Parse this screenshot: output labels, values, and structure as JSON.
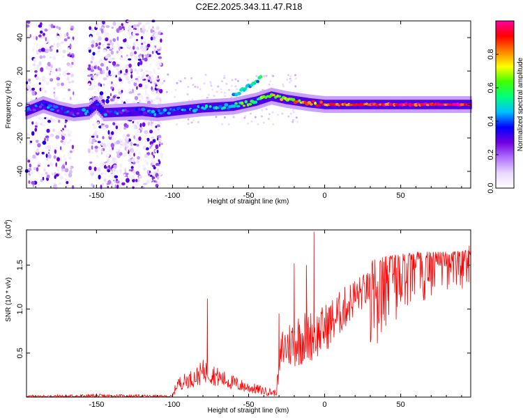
{
  "title": "C2E2.2025.343.11.47.R18",
  "chart_data": [
    {
      "type": "heatmap",
      "name": "spectrogram",
      "xlabel": "Height of straight line (km)",
      "ylabel": "Frequency (Hz)",
      "xlim": [
        -196,
        96
      ],
      "ylim": [
        -50,
        50
      ],
      "xticks": [
        -150,
        -100,
        -50,
        0,
        50
      ],
      "xtick_labels": [
        "-150",
        "-100",
        "-50",
        "0",
        "50"
      ],
      "yticks": [
        -40,
        -20,
        0,
        20,
        40
      ],
      "ytick_labels": [
        "-40",
        "-20",
        "0",
        "20",
        "40"
      ],
      "colorbar": {
        "label": "Normalized spectral amplitude",
        "range": [
          0,
          1
        ],
        "ticks": [
          0.0,
          0.2,
          0.4,
          0.6,
          0.8
        ],
        "tick_labels": [
          "0.0",
          "0.2",
          "0.4",
          "0.6",
          "0.8"
        ],
        "colors": [
          "#ffffff",
          "#e8d8ff",
          "#b070ff",
          "#7000e0",
          "#0000ff",
          "#00c0ff",
          "#00ff80",
          "#40ff00",
          "#ffff00",
          "#ff8000",
          "#ff0000",
          "#ff00a0"
        ]
      },
      "ridge": [
        {
          "x": -196,
          "f": -4
        },
        {
          "x": -185,
          "f": 0
        },
        {
          "x": -175,
          "f": -3
        },
        {
          "x": -165,
          "f": -5
        },
        {
          "x": -155,
          "f": -4
        },
        {
          "x": -150,
          "f": 0
        },
        {
          "x": -145,
          "f": -5
        },
        {
          "x": -120,
          "f": -4
        },
        {
          "x": -110,
          "f": -5
        },
        {
          "x": -100,
          "f": -4
        },
        {
          "x": -80,
          "f": -2
        },
        {
          "x": -60,
          "f": -1
        },
        {
          "x": -45,
          "f": 2
        },
        {
          "x": -35,
          "f": 5
        },
        {
          "x": -25,
          "f": 3
        },
        {
          "x": -10,
          "f": 1
        },
        {
          "x": 0,
          "f": 0
        },
        {
          "x": 20,
          "f": 0
        },
        {
          "x": 50,
          "f": 0
        },
        {
          "x": 96,
          "f": 0
        }
      ],
      "ridge_amplitude": [
        {
          "x": -196,
          "a": 0.35
        },
        {
          "x": -120,
          "a": 0.35
        },
        {
          "x": -60,
          "a": 0.5
        },
        {
          "x": -40,
          "a": 0.65
        },
        {
          "x": -20,
          "a": 0.75
        },
        {
          "x": 0,
          "a": 0.85
        },
        {
          "x": 20,
          "a": 0.9
        },
        {
          "x": 96,
          "a": 0.92
        }
      ],
      "branch": [
        {
          "x": -60,
          "f": 5
        },
        {
          "x": -50,
          "f": 11
        },
        {
          "x": -42,
          "f": 16
        }
      ],
      "noise_regions": [
        {
          "x_from": -196,
          "x_to": -165,
          "density": 0.55
        },
        {
          "x_from": -155,
          "x_to": -107,
          "density": 0.9
        }
      ]
    },
    {
      "type": "line",
      "name": "snr",
      "xlabel": "Height of straight line (km)",
      "ylabel": "SNR (10 * v/v)",
      "exponent_label": "(x10",
      "exponent_power": "4",
      "exponent_close": ")",
      "xlim": [
        -196,
        96
      ],
      "ylim": [
        0,
        1.9
      ],
      "xticks": [
        -150,
        -100,
        -50,
        0,
        50
      ],
      "xtick_labels": [
        "-150",
        "-100",
        "-50",
        "0",
        "50"
      ],
      "yticks": [
        0.5,
        1.0,
        1.5
      ],
      "ytick_labels": [
        "0.5",
        "1.0",
        "1.5"
      ],
      "color": "#ff0000",
      "envelope": [
        {
          "x": -196,
          "base": 0.0,
          "spread": 0.03
        },
        {
          "x": -150,
          "base": 0.0,
          "spread": 0.05
        },
        {
          "x": -100,
          "base": 0.0,
          "spread": 0.03
        },
        {
          "x": -97,
          "base": 0.12,
          "spread": 0.15
        },
        {
          "x": -85,
          "base": 0.18,
          "spread": 0.22
        },
        {
          "x": -78,
          "base": 0.25,
          "spread": 0.3
        },
        {
          "x": -70,
          "base": 0.18,
          "spread": 0.22
        },
        {
          "x": -55,
          "base": 0.1,
          "spread": 0.15
        },
        {
          "x": -40,
          "base": 0.05,
          "spread": 0.1
        },
        {
          "x": -32,
          "base": 0.03,
          "spread": 0.08
        },
        {
          "x": -28,
          "base": 0.45,
          "spread": 0.5
        },
        {
          "x": -15,
          "base": 0.55,
          "spread": 0.65
        },
        {
          "x": -5,
          "base": 0.6,
          "spread": 0.55
        },
        {
          "x": 5,
          "base": 0.75,
          "spread": 0.55
        },
        {
          "x": 20,
          "base": 1.05,
          "spread": 0.45
        },
        {
          "x": 40,
          "base": 1.3,
          "spread": 0.3
        },
        {
          "x": 60,
          "base": 1.45,
          "spread": 0.2
        },
        {
          "x": 80,
          "base": 1.5,
          "spread": 0.15
        },
        {
          "x": 96,
          "base": 1.52,
          "spread": 0.15
        }
      ],
      "spikes": [
        {
          "x": -77,
          "y": 1.12
        },
        {
          "x": -20,
          "y": 1.52
        },
        {
          "x": -12,
          "y": 1.5
        },
        {
          "x": -7,
          "y": 1.88
        },
        {
          "x": -30,
          "y": 0.95
        },
        {
          "x": 95,
          "y": 1.72
        }
      ]
    }
  ]
}
